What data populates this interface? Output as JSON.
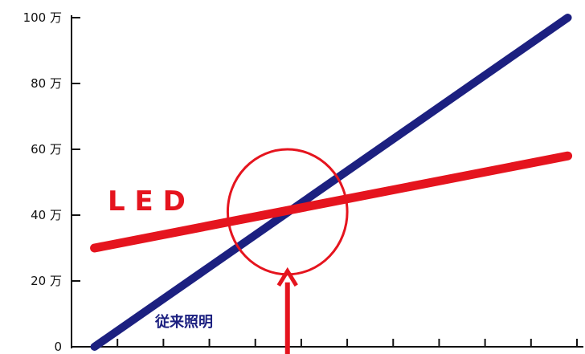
{
  "chart_data": {
    "type": "line",
    "title": "",
    "xlabel": "",
    "ylabel": "",
    "xlim": [
      0,
      11
    ],
    "ylim": [
      0,
      100
    ],
    "x_tick_count": 11,
    "y_ticks": [
      {
        "value": 0,
        "label": "0"
      },
      {
        "value": 20,
        "label": "20 万"
      },
      {
        "value": 40,
        "label": "40 万"
      },
      {
        "value": 60,
        "label": "60 万"
      },
      {
        "value": 80,
        "label": "80 万"
      },
      {
        "value": 100,
        "label": "100 万"
      }
    ],
    "series": [
      {
        "name": "従来照明",
        "color": "#1c2080",
        "x": [
          0.5,
          10.8
        ],
        "values": [
          0,
          100
        ]
      },
      {
        "name": "L E D",
        "color": "#e5141e",
        "x": [
          0.5,
          10.8
        ],
        "values": [
          30,
          58
        ]
      }
    ],
    "annotations": {
      "circle": {
        "x": 4.7,
        "y": 41,
        "rx": 1.3,
        "ry": 19,
        "color": "#e5141e"
      },
      "arrow": {
        "x": 4.7,
        "y_from": 0,
        "y_to": 23,
        "color": "#e5141e"
      }
    }
  }
}
